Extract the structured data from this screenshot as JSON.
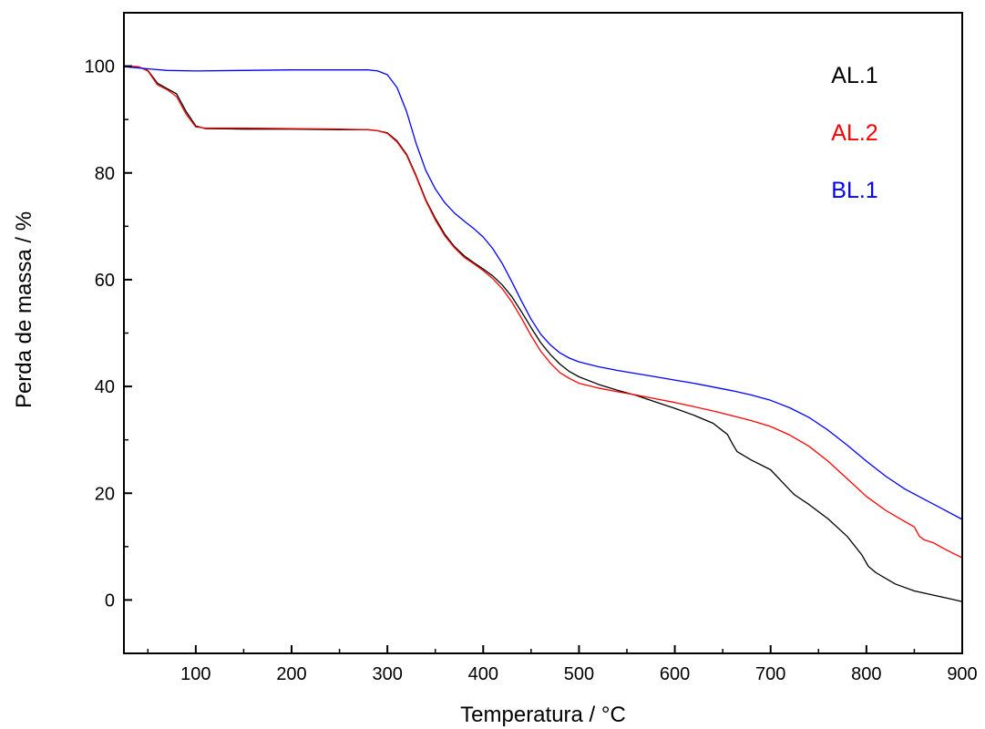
{
  "chart_data": {
    "type": "line",
    "xlabel": "Temperatura / °C",
    "ylabel": "Perda de massa / %",
    "xlim": [
      25,
      900
    ],
    "ylim": [
      -10,
      110
    ],
    "x_ticks": [
      100,
      200,
      300,
      400,
      500,
      600,
      700,
      800,
      900
    ],
    "x_tick_labels": [
      "100",
      "200",
      "300",
      "400",
      "500",
      "600",
      "700",
      "800",
      "900"
    ],
    "x_minor_ticks": [
      50,
      150,
      250,
      350,
      450,
      550,
      650,
      750,
      850
    ],
    "y_ticks": [
      0,
      20,
      40,
      60,
      80,
      100
    ],
    "y_tick_labels": [
      "0",
      "20",
      "40",
      "60",
      "80",
      "100"
    ],
    "y_minor_ticks": [
      -10,
      10,
      30,
      50,
      70,
      90
    ],
    "grid": false,
    "legend_position": "top-right",
    "series": [
      {
        "name": "AL.1",
        "color": "#000000",
        "points": [
          [
            25,
            100
          ],
          [
            40,
            99.9
          ],
          [
            50,
            99.2
          ],
          [
            60,
            96.8
          ],
          [
            70,
            95.8
          ],
          [
            80,
            94.8
          ],
          [
            90,
            91.5
          ],
          [
            100,
            88.8
          ],
          [
            110,
            88.3
          ],
          [
            150,
            88.2
          ],
          [
            200,
            88.2
          ],
          [
            250,
            88.1
          ],
          [
            280,
            88.1
          ],
          [
            290,
            87.9
          ],
          [
            300,
            87.5
          ],
          [
            310,
            86.0
          ],
          [
            320,
            83.5
          ],
          [
            330,
            79.5
          ],
          [
            340,
            75.0
          ],
          [
            350,
            71.5
          ],
          [
            360,
            68.5
          ],
          [
            370,
            66.2
          ],
          [
            380,
            64.5
          ],
          [
            390,
            63.2
          ],
          [
            400,
            62.0
          ],
          [
            410,
            60.7
          ],
          [
            420,
            59.0
          ],
          [
            430,
            56.8
          ],
          [
            440,
            54.0
          ],
          [
            450,
            51.0
          ],
          [
            460,
            48.2
          ],
          [
            470,
            46.0
          ],
          [
            480,
            44.2
          ],
          [
            490,
            42.8
          ],
          [
            500,
            41.8
          ],
          [
            520,
            40.4
          ],
          [
            540,
            39.3
          ],
          [
            560,
            38.3
          ],
          [
            580,
            37.1
          ],
          [
            600,
            35.9
          ],
          [
            620,
            34.6
          ],
          [
            640,
            33.1
          ],
          [
            655,
            31.0
          ],
          [
            660,
            29.3
          ],
          [
            665,
            27.8
          ],
          [
            680,
            26.2
          ],
          [
            700,
            24.4
          ],
          [
            710,
            22.5
          ],
          [
            720,
            20.6
          ],
          [
            725,
            19.7
          ],
          [
            740,
            17.9
          ],
          [
            760,
            15.2
          ],
          [
            780,
            11.9
          ],
          [
            795,
            8.5
          ],
          [
            802,
            6.3
          ],
          [
            810,
            5.1
          ],
          [
            830,
            3.0
          ],
          [
            850,
            1.7
          ],
          [
            870,
            0.9
          ],
          [
            890,
            0.1
          ],
          [
            900,
            -0.3
          ]
        ]
      },
      {
        "name": "AL.2",
        "color": "#ff0000",
        "points": [
          [
            25,
            100
          ],
          [
            40,
            99.9
          ],
          [
            50,
            99.1
          ],
          [
            60,
            96.5
          ],
          [
            70,
            95.6
          ],
          [
            80,
            94.3
          ],
          [
            90,
            91.0
          ],
          [
            100,
            88.6
          ],
          [
            110,
            88.4
          ],
          [
            150,
            88.4
          ],
          [
            200,
            88.3
          ],
          [
            250,
            88.2
          ],
          [
            280,
            88.1
          ],
          [
            290,
            87.9
          ],
          [
            300,
            87.4
          ],
          [
            310,
            85.8
          ],
          [
            320,
            83.3
          ],
          [
            330,
            79.3
          ],
          [
            340,
            74.8
          ],
          [
            350,
            71.2
          ],
          [
            360,
            68.2
          ],
          [
            370,
            66.0
          ],
          [
            380,
            64.2
          ],
          [
            390,
            63.0
          ],
          [
            400,
            61.7
          ],
          [
            410,
            60.2
          ],
          [
            420,
            58.3
          ],
          [
            430,
            55.8
          ],
          [
            440,
            52.8
          ],
          [
            450,
            49.5
          ],
          [
            460,
            46.6
          ],
          [
            470,
            44.4
          ],
          [
            480,
            42.6
          ],
          [
            490,
            41.5
          ],
          [
            500,
            40.6
          ],
          [
            520,
            39.7
          ],
          [
            540,
            39.0
          ],
          [
            560,
            38.4
          ],
          [
            580,
            37.7
          ],
          [
            600,
            37.0
          ],
          [
            620,
            36.2
          ],
          [
            640,
            35.4
          ],
          [
            660,
            34.5
          ],
          [
            680,
            33.6
          ],
          [
            700,
            32.5
          ],
          [
            720,
            30.9
          ],
          [
            740,
            28.8
          ],
          [
            760,
            26.0
          ],
          [
            780,
            22.7
          ],
          [
            800,
            19.4
          ],
          [
            820,
            16.8
          ],
          [
            840,
            14.7
          ],
          [
            850,
            13.7
          ],
          [
            855,
            12.0
          ],
          [
            860,
            11.3
          ],
          [
            870,
            10.7
          ],
          [
            880,
            9.7
          ],
          [
            890,
            8.8
          ],
          [
            900,
            7.9
          ]
        ]
      },
      {
        "name": "BL.1",
        "color": "#0000ff",
        "points": [
          [
            25,
            99.9
          ],
          [
            50,
            99.5
          ],
          [
            70,
            99.2
          ],
          [
            100,
            99.1
          ],
          [
            150,
            99.2
          ],
          [
            200,
            99.3
          ],
          [
            250,
            99.3
          ],
          [
            280,
            99.3
          ],
          [
            290,
            99.1
          ],
          [
            300,
            98.4
          ],
          [
            310,
            96.0
          ],
          [
            320,
            91.5
          ],
          [
            330,
            85.5
          ],
          [
            340,
            80.5
          ],
          [
            350,
            77.0
          ],
          [
            360,
            74.4
          ],
          [
            370,
            72.5
          ],
          [
            380,
            71.0
          ],
          [
            390,
            69.6
          ],
          [
            400,
            68.0
          ],
          [
            410,
            65.8
          ],
          [
            420,
            63.0
          ],
          [
            430,
            59.6
          ],
          [
            440,
            56.0
          ],
          [
            450,
            52.6
          ],
          [
            460,
            49.8
          ],
          [
            470,
            47.8
          ],
          [
            480,
            46.3
          ],
          [
            490,
            45.3
          ],
          [
            500,
            44.6
          ],
          [
            520,
            43.7
          ],
          [
            540,
            43.0
          ],
          [
            560,
            42.4
          ],
          [
            580,
            41.8
          ],
          [
            600,
            41.2
          ],
          [
            620,
            40.6
          ],
          [
            640,
            39.9
          ],
          [
            660,
            39.2
          ],
          [
            680,
            38.4
          ],
          [
            700,
            37.4
          ],
          [
            720,
            36.0
          ],
          [
            740,
            34.2
          ],
          [
            760,
            31.8
          ],
          [
            780,
            29.0
          ],
          [
            800,
            26.0
          ],
          [
            820,
            23.2
          ],
          [
            840,
            20.8
          ],
          [
            860,
            18.9
          ],
          [
            880,
            17.0
          ],
          [
            900,
            15.1
          ]
        ]
      }
    ]
  }
}
